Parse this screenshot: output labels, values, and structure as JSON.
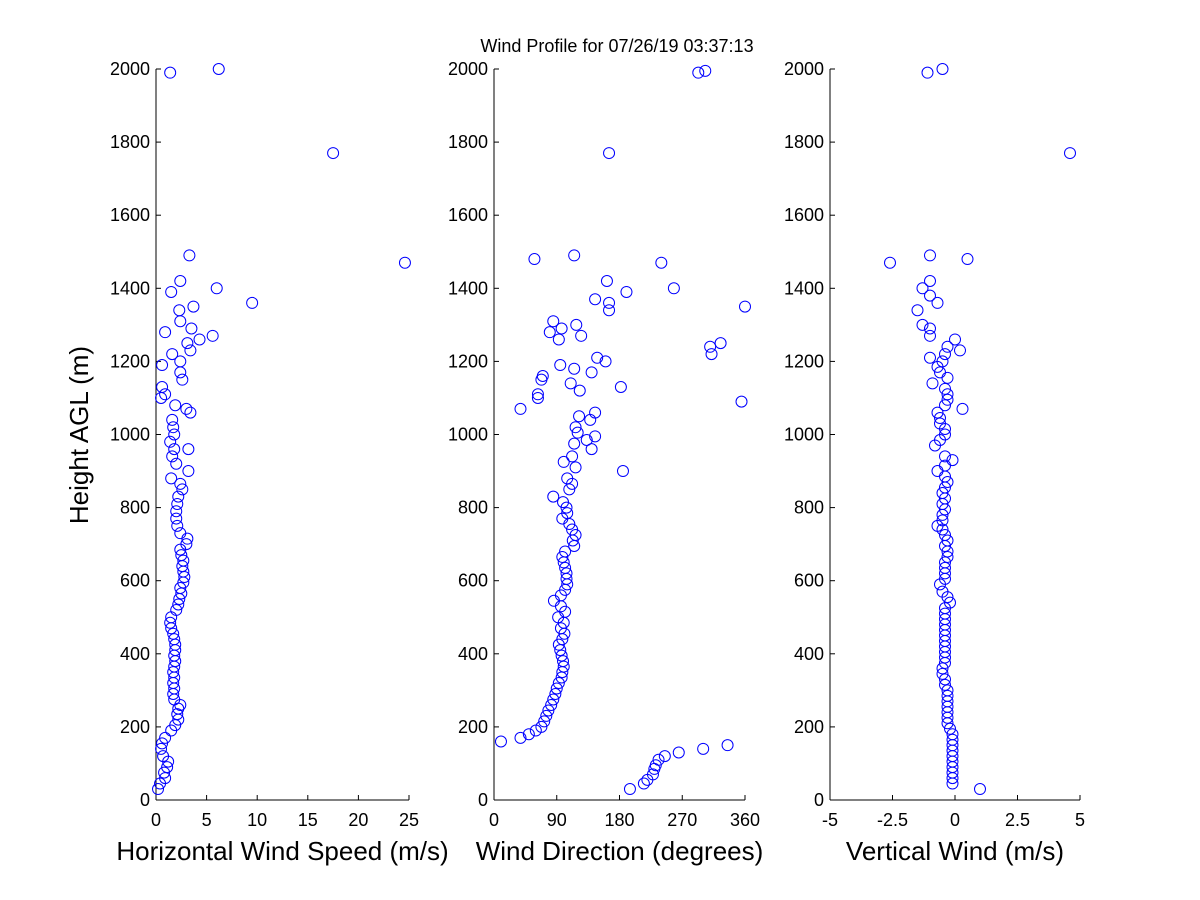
{
  "chart_data": {
    "type": "scatter",
    "title": "Wind Profile for  07/26/19 03:37:13",
    "marker_color": "#0000ff",
    "ylabel": "Height AGL (m)",
    "panels": [
      {
        "xlabel": "Horizontal Wind Speed (m/s)",
        "xlim": [
          0,
          25
        ],
        "ylim": [
          0,
          2000
        ],
        "xticks": [
          "0",
          "5",
          "10",
          "15",
          "20",
          "25"
        ],
        "yticks": [
          "0",
          "200",
          "400",
          "600",
          "800",
          "1000",
          "1200",
          "1400",
          "1600",
          "1800",
          "2000"
        ],
        "points": [
          [
            0.2,
            30
          ],
          [
            0.4,
            45
          ],
          [
            0.9,
            60
          ],
          [
            0.8,
            75
          ],
          [
            1.1,
            90
          ],
          [
            1.2,
            105
          ],
          [
            0.7,
            120
          ],
          [
            0.5,
            140
          ],
          [
            0.6,
            155
          ],
          [
            0.9,
            170
          ],
          [
            1.5,
            190
          ],
          [
            1.9,
            205
          ],
          [
            2.2,
            220
          ],
          [
            2.1,
            235
          ],
          [
            2.2,
            250
          ],
          [
            2.4,
            260
          ],
          [
            1.8,
            275
          ],
          [
            1.7,
            290
          ],
          [
            1.8,
            305
          ],
          [
            1.7,
            320
          ],
          [
            1.8,
            335
          ],
          [
            1.7,
            350
          ],
          [
            1.8,
            365
          ],
          [
            1.9,
            380
          ],
          [
            1.8,
            395
          ],
          [
            1.9,
            410
          ],
          [
            1.9,
            425
          ],
          [
            1.8,
            440
          ],
          [
            1.7,
            455
          ],
          [
            1.5,
            470
          ],
          [
            1.4,
            485
          ],
          [
            1.5,
            500
          ],
          [
            2.0,
            520
          ],
          [
            2.2,
            535
          ],
          [
            2.3,
            550
          ],
          [
            2.5,
            565
          ],
          [
            2.4,
            580
          ],
          [
            2.7,
            595
          ],
          [
            2.8,
            610
          ],
          [
            2.7,
            625
          ],
          [
            2.6,
            640
          ],
          [
            2.7,
            655
          ],
          [
            2.5,
            670
          ],
          [
            2.4,
            685
          ],
          [
            3.0,
            700
          ],
          [
            3.1,
            715
          ],
          [
            2.4,
            730
          ],
          [
            2.1,
            750
          ],
          [
            2.0,
            770
          ],
          [
            2.0,
            790
          ],
          [
            2.1,
            810
          ],
          [
            2.2,
            830
          ],
          [
            2.6,
            850
          ],
          [
            2.4,
            865
          ],
          [
            1.5,
            880
          ],
          [
            3.2,
            900
          ],
          [
            2.0,
            920
          ],
          [
            1.6,
            940
          ],
          [
            1.8,
            960
          ],
          [
            3.2,
            960
          ],
          [
            1.4,
            980
          ],
          [
            1.8,
            1000
          ],
          [
            1.7,
            1020
          ],
          [
            1.6,
            1040
          ],
          [
            3.4,
            1060
          ],
          [
            3.0,
            1070
          ],
          [
            1.9,
            1080
          ],
          [
            0.5,
            1100
          ],
          [
            0.9,
            1110
          ],
          [
            0.6,
            1130
          ],
          [
            2.6,
            1150
          ],
          [
            2.4,
            1170
          ],
          [
            0.6,
            1190
          ],
          [
            2.4,
            1200
          ],
          [
            1.6,
            1220
          ],
          [
            3.4,
            1230
          ],
          [
            3.1,
            1250
          ],
          [
            4.3,
            1260
          ],
          [
            5.6,
            1270
          ],
          [
            0.9,
            1280
          ],
          [
            3.5,
            1290
          ],
          [
            2.4,
            1310
          ],
          [
            2.3,
            1340
          ],
          [
            3.7,
            1350
          ],
          [
            9.5,
            1360
          ],
          [
            1.5,
            1390
          ],
          [
            6.0,
            1400
          ],
          [
            2.4,
            1420
          ],
          [
            24.6,
            1470
          ],
          [
            3.3,
            1490
          ],
          [
            17.5,
            1770
          ],
          [
            1.4,
            1990
          ],
          [
            6.2,
            2000
          ]
        ]
      },
      {
        "xlabel": "Wind Direction (degrees)",
        "xlim": [
          0,
          360
        ],
        "ylim": [
          0,
          2000
        ],
        "xticks": [
          "0",
          "90",
          "180",
          "270",
          "360"
        ],
        "yticks": [
          "0",
          "200",
          "400",
          "600",
          "800",
          "1000",
          "1200",
          "1400",
          "1600",
          "1800",
          "2000"
        ],
        "points": [
          [
            195,
            30
          ],
          [
            215,
            45
          ],
          [
            220,
            55
          ],
          [
            228,
            70
          ],
          [
            230,
            85
          ],
          [
            232,
            95
          ],
          [
            236,
            110
          ],
          [
            245,
            120
          ],
          [
            265,
            130
          ],
          [
            300,
            140
          ],
          [
            335,
            150
          ],
          [
            10,
            160
          ],
          [
            38,
            170
          ],
          [
            50,
            180
          ],
          [
            60,
            190
          ],
          [
            68,
            200
          ],
          [
            72,
            215
          ],
          [
            75,
            230
          ],
          [
            78,
            245
          ],
          [
            82,
            260
          ],
          [
            85,
            275
          ],
          [
            88,
            290
          ],
          [
            90,
            305
          ],
          [
            93,
            320
          ],
          [
            97,
            335
          ],
          [
            98,
            350
          ],
          [
            100,
            365
          ],
          [
            99,
            380
          ],
          [
            97,
            395
          ],
          [
            95,
            410
          ],
          [
            93,
            425
          ],
          [
            98,
            440
          ],
          [
            101,
            455
          ],
          [
            96,
            470
          ],
          [
            100,
            485
          ],
          [
            92,
            500
          ],
          [
            102,
            515
          ],
          [
            96,
            530
          ],
          [
            86,
            545
          ],
          [
            96,
            560
          ],
          [
            102,
            575
          ],
          [
            105,
            590
          ],
          [
            104,
            605
          ],
          [
            104,
            620
          ],
          [
            102,
            635
          ],
          [
            100,
            650
          ],
          [
            98,
            665
          ],
          [
            102,
            680
          ],
          [
            115,
            695
          ],
          [
            113,
            710
          ],
          [
            117,
            725
          ],
          [
            112,
            740
          ],
          [
            108,
            755
          ],
          [
            98,
            770
          ],
          [
            105,
            785
          ],
          [
            104,
            800
          ],
          [
            99,
            815
          ],
          [
            85,
            830
          ],
          [
            108,
            850
          ],
          [
            112,
            865
          ],
          [
            105,
            880
          ],
          [
            185,
            900
          ],
          [
            117,
            910
          ],
          [
            100,
            925
          ],
          [
            112,
            940
          ],
          [
            140,
            960
          ],
          [
            115,
            975
          ],
          [
            133,
            985
          ],
          [
            145,
            995
          ],
          [
            120,
            1005
          ],
          [
            117,
            1020
          ],
          [
            138,
            1040
          ],
          [
            122,
            1050
          ],
          [
            145,
            1060
          ],
          [
            38,
            1070
          ],
          [
            355,
            1090
          ],
          [
            63,
            1100
          ],
          [
            63,
            1110
          ],
          [
            123,
            1120
          ],
          [
            182,
            1130
          ],
          [
            110,
            1140
          ],
          [
            68,
            1150
          ],
          [
            70,
            1160
          ],
          [
            140,
            1170
          ],
          [
            115,
            1180
          ],
          [
            95,
            1190
          ],
          [
            160,
            1200
          ],
          [
            148,
            1210
          ],
          [
            312,
            1220
          ],
          [
            310,
            1240
          ],
          [
            325,
            1250
          ],
          [
            93,
            1260
          ],
          [
            125,
            1270
          ],
          [
            80,
            1280
          ],
          [
            97,
            1290
          ],
          [
            118,
            1300
          ],
          [
            85,
            1310
          ],
          [
            165,
            1340
          ],
          [
            360,
            1350
          ],
          [
            165,
            1360
          ],
          [
            145,
            1370
          ],
          [
            190,
            1390
          ],
          [
            258,
            1400
          ],
          [
            162,
            1420
          ],
          [
            240,
            1470
          ],
          [
            58,
            1480
          ],
          [
            115,
            1490
          ],
          [
            165,
            1770
          ],
          [
            293,
            1990
          ],
          [
            303,
            1995
          ]
        ]
      },
      {
        "xlabel": "Vertical Wind (m/s)",
        "xlim": [
          -5,
          5
        ],
        "ylim": [
          0,
          2000
        ],
        "xticks": [
          "-5",
          "-2.5",
          "0",
          "2.5",
          "5"
        ],
        "yticks": [
          "0",
          "200",
          "400",
          "600",
          "800",
          "1000",
          "1200",
          "1400",
          "1600",
          "1800",
          "2000"
        ],
        "points": [
          [
            1.0,
            30
          ],
          [
            -0.1,
            45
          ],
          [
            -0.1,
            60
          ],
          [
            -0.1,
            75
          ],
          [
            -0.1,
            90
          ],
          [
            -0.1,
            105
          ],
          [
            -0.1,
            120
          ],
          [
            -0.1,
            135
          ],
          [
            -0.1,
            150
          ],
          [
            -0.1,
            165
          ],
          [
            -0.1,
            180
          ],
          [
            -0.2,
            195
          ],
          [
            -0.3,
            210
          ],
          [
            -0.3,
            225
          ],
          [
            -0.3,
            240
          ],
          [
            -0.3,
            255
          ],
          [
            -0.3,
            270
          ],
          [
            -0.3,
            285
          ],
          [
            -0.3,
            300
          ],
          [
            -0.4,
            315
          ],
          [
            -0.4,
            330
          ],
          [
            -0.5,
            345
          ],
          [
            -0.5,
            360
          ],
          [
            -0.4,
            375
          ],
          [
            -0.4,
            390
          ],
          [
            -0.4,
            405
          ],
          [
            -0.4,
            420
          ],
          [
            -0.4,
            435
          ],
          [
            -0.4,
            450
          ],
          [
            -0.4,
            465
          ],
          [
            -0.4,
            480
          ],
          [
            -0.4,
            495
          ],
          [
            -0.4,
            510
          ],
          [
            -0.4,
            525
          ],
          [
            -0.2,
            540
          ],
          [
            -0.3,
            555
          ],
          [
            -0.5,
            570
          ],
          [
            -0.6,
            590
          ],
          [
            -0.4,
            605
          ],
          [
            -0.4,
            620
          ],
          [
            -0.4,
            635
          ],
          [
            -0.4,
            650
          ],
          [
            -0.3,
            665
          ],
          [
            -0.3,
            680
          ],
          [
            -0.4,
            695
          ],
          [
            -0.3,
            710
          ],
          [
            -0.4,
            725
          ],
          [
            -0.5,
            740
          ],
          [
            -0.7,
            750
          ],
          [
            -0.5,
            765
          ],
          [
            -0.5,
            780
          ],
          [
            -0.4,
            795
          ],
          [
            -0.5,
            810
          ],
          [
            -0.4,
            825
          ],
          [
            -0.5,
            840
          ],
          [
            -0.4,
            855
          ],
          [
            -0.3,
            870
          ],
          [
            -0.4,
            885
          ],
          [
            -0.7,
            900
          ],
          [
            -0.4,
            915
          ],
          [
            -0.1,
            930
          ],
          [
            -0.4,
            940
          ],
          [
            -0.8,
            970
          ],
          [
            -0.6,
            985
          ],
          [
            -0.4,
            1000
          ],
          [
            -0.4,
            1015
          ],
          [
            -0.6,
            1030
          ],
          [
            -0.6,
            1045
          ],
          [
            -0.7,
            1060
          ],
          [
            0.3,
            1070
          ],
          [
            -0.4,
            1080
          ],
          [
            -0.3,
            1095
          ],
          [
            -0.3,
            1110
          ],
          [
            -0.4,
            1125
          ],
          [
            -0.9,
            1140
          ],
          [
            -0.3,
            1155
          ],
          [
            -0.6,
            1170
          ],
          [
            -0.7,
            1185
          ],
          [
            -0.5,
            1200
          ],
          [
            -1.0,
            1210
          ],
          [
            -0.4,
            1220
          ],
          [
            0.2,
            1230
          ],
          [
            -0.3,
            1240
          ],
          [
            0.0,
            1260
          ],
          [
            -1.0,
            1270
          ],
          [
            -1.0,
            1290
          ],
          [
            -1.3,
            1300
          ],
          [
            -1.5,
            1340
          ],
          [
            -0.7,
            1360
          ],
          [
            -1.0,
            1380
          ],
          [
            -1.3,
            1400
          ],
          [
            -1.0,
            1420
          ],
          [
            -2.6,
            1470
          ],
          [
            0.5,
            1480
          ],
          [
            -1.0,
            1490
          ],
          [
            4.6,
            1770
          ],
          [
            -1.1,
            1990
          ],
          [
            -0.5,
            2000
          ]
        ]
      }
    ]
  }
}
